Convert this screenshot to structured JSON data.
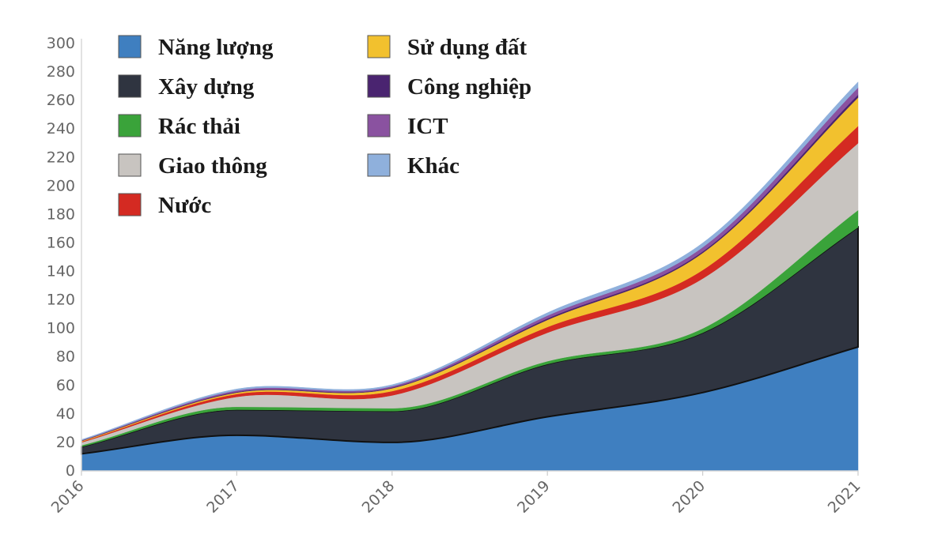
{
  "chart_data": {
    "type": "area",
    "stacked": true,
    "x": [
      "2016",
      "2017",
      "2018",
      "2019",
      "2020",
      "2021"
    ],
    "ylim": [
      0,
      300
    ],
    "yticks": [
      0,
      20,
      40,
      60,
      80,
      100,
      120,
      140,
      160,
      180,
      200,
      220,
      240,
      260,
      280,
      300
    ],
    "legend_position": "top-left",
    "grid": false,
    "series": [
      {
        "name": "Năng lượng",
        "color": "#3f7fc0",
        "values": [
          12,
          25,
          20,
          38,
          55,
          87
        ]
      },
      {
        "name": "Xây dựng",
        "color": "#2f3440",
        "values": [
          5,
          18,
          22,
          37,
          42,
          84
        ]
      },
      {
        "name": "Rác thải",
        "color": "#3aa33a",
        "values": [
          1,
          2,
          2,
          2,
          3,
          12
        ]
      },
      {
        "name": "Giao thông",
        "color": "#c8c4c0",
        "values": [
          2,
          7,
          9,
          20,
          35,
          47
        ]
      },
      {
        "name": "Nước",
        "color": "#d42a22",
        "values": [
          0.5,
          2,
          3,
          4,
          6,
          12
        ]
      },
      {
        "name": "Sử dụng đất",
        "color": "#f2c12e",
        "values": [
          0.5,
          1,
          2,
          5,
          12,
          20
        ]
      },
      {
        "name": "Công nghiệp",
        "color": "#4a2470",
        "values": [
          0.3,
          0.5,
          0.5,
          1,
          1,
          2
        ]
      },
      {
        "name": "ICT",
        "color": "#8a52a0",
        "values": [
          0.2,
          1,
          1,
          2,
          3,
          5
        ]
      },
      {
        "name": "Khác",
        "color": "#8fb0dc",
        "values": [
          0.5,
          1,
          1,
          2,
          3,
          4
        ]
      }
    ]
  }
}
